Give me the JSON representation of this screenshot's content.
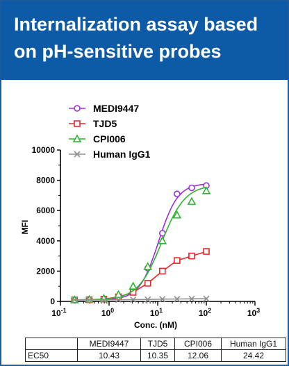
{
  "banner": {
    "title": "Internalization assay based on pH-sensitive probes"
  },
  "chart_data": {
    "type": "line",
    "xlabel": "Conc. (nM)",
    "ylabel": "MFI",
    "x_scale": "log",
    "xlim": [
      0.1,
      1000
    ],
    "ylim": [
      0,
      10000
    ],
    "x_ticks": [
      "10-1",
      "100",
      "101",
      "102",
      "103"
    ],
    "x_tick_values": [
      0.1,
      1,
      10,
      100,
      1000
    ],
    "y_ticks": [
      "0",
      "2000",
      "4000",
      "6000",
      "8000",
      "10000"
    ],
    "y_tick_values": [
      0,
      2000,
      4000,
      6000,
      8000,
      10000
    ],
    "legend_position": "top",
    "series": [
      {
        "name": "MEDI9447",
        "color": "#9b30d9",
        "marker": "circle",
        "x": [
          0.195,
          0.39,
          0.78,
          1.56,
          3.125,
          6.25,
          12.5,
          25,
          50,
          100
        ],
        "y": [
          100,
          120,
          160,
          250,
          700,
          2200,
          4500,
          7100,
          7500,
          7650
        ],
        "curve": {
          "bottom": 100,
          "top": 7800,
          "ec50": 10.43,
          "hill": 2.2
        }
      },
      {
        "name": "TJD5",
        "color": "#e8262a",
        "marker": "square",
        "x": [
          0.195,
          0.39,
          0.78,
          1.56,
          3.125,
          6.25,
          12.5,
          25,
          50,
          100
        ],
        "y": [
          100,
          110,
          150,
          300,
          600,
          1200,
          2000,
          2700,
          3000,
          3300
        ],
        "curve": null
      },
      {
        "name": "CPI006",
        "color": "#2fb52f",
        "marker": "triangle",
        "x": [
          0.195,
          0.39,
          0.78,
          1.56,
          3.125,
          6.25,
          12.5,
          25,
          50,
          100
        ],
        "y": [
          100,
          130,
          200,
          450,
          1000,
          2300,
          4000,
          5700,
          6600,
          7300
        ],
        "curve": {
          "bottom": 100,
          "top": 7700,
          "ec50": 12.06,
          "hill": 1.8
        }
      },
      {
        "name": "Human IgG1",
        "color": "#909090",
        "marker": "x",
        "x": [
          0.195,
          0.39,
          0.78,
          1.56,
          3.125,
          6.25,
          12.5,
          25,
          50,
          100
        ],
        "y": [
          100,
          100,
          100,
          110,
          120,
          130,
          150,
          160,
          170,
          180
        ],
        "curve": null
      }
    ]
  },
  "table": {
    "headers": [
      "",
      "MEDI9447",
      "TJD5",
      "CPI006",
      "Human IgG1"
    ],
    "rows": [
      [
        "EC50",
        "10.43",
        "10.35",
        "12.06",
        "24.42"
      ]
    ]
  }
}
